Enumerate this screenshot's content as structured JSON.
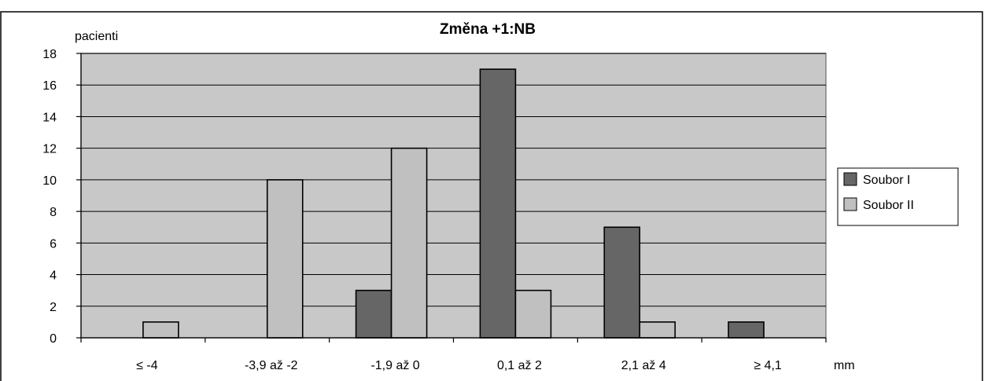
{
  "chart_data": {
    "type": "bar",
    "title": "Změna +1:NB",
    "ylabel": "pacienti",
    "xlabel": "mm",
    "categories": [
      "≤ -4",
      "-3,9 až -2",
      "-1,9 až 0",
      "0,1 až 2",
      "2,1 až 4",
      "≥ 4,1"
    ],
    "series": [
      {
        "name": "Soubor I",
        "values": [
          0,
          0,
          3,
          17,
          7,
          1
        ],
        "color": "#666666"
      },
      {
        "name": "Soubor II",
        "values": [
          1,
          10,
          12,
          3,
          1,
          0
        ],
        "color": "#c0c0c0"
      }
    ],
    "ylim": [
      0,
      18
    ],
    "yticks": [
      0,
      2,
      4,
      6,
      8,
      10,
      12,
      14,
      16,
      18
    ],
    "grid": true,
    "plot_background": "#c8c8c8",
    "legend_position": "right"
  }
}
